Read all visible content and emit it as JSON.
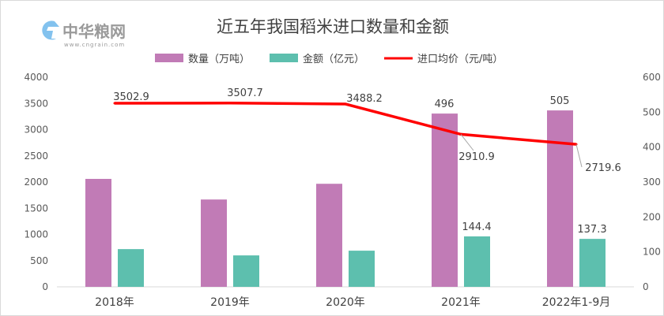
{
  "logo": {
    "name": "中华粮网",
    "url_text": "www.cngrain.com"
  },
  "chart_data": {
    "type": "bar",
    "title": "近五年我国稻米进口数量和金额",
    "categories": [
      "2018年",
      "2019年",
      "2020年",
      "2021年",
      "2022年1-9月"
    ],
    "series": [
      {
        "name": "数量（万吨）",
        "type": "bar",
        "axis": "right",
        "color": "#c17bb6",
        "values": [
          309,
          250,
          295,
          496,
          505
        ],
        "labels": [
          "",
          "",
          "",
          "496",
          "505"
        ]
      },
      {
        "name": "金额（亿元）",
        "type": "bar",
        "axis": "right",
        "color": "#5dbfae",
        "values": [
          108,
          90,
          103.5,
          144.4,
          137.3
        ],
        "labels": [
          "",
          "",
          "",
          "144.4",
          "137.3"
        ]
      },
      {
        "name": "进口均价（元/吨）",
        "type": "line",
        "axis": "left",
        "color": "#ff0000",
        "values": [
          3502.9,
          3507.7,
          3488.2,
          2910.9,
          2719.6
        ],
        "labels": [
          "3502.9",
          "3507.7",
          "3488.2",
          "2910.9",
          "2719.6"
        ]
      }
    ],
    "left_axis": {
      "ylim": [
        0,
        4000
      ],
      "ticks": [
        "0",
        "500",
        "1000",
        "1500",
        "2000",
        "2500",
        "3000",
        "3500",
        "4000"
      ]
    },
    "right_axis": {
      "ylim": [
        0,
        600
      ],
      "ticks": [
        "0",
        "100",
        "200",
        "300",
        "400",
        "500",
        "600"
      ]
    },
    "legend": "top",
    "grid": false
  }
}
